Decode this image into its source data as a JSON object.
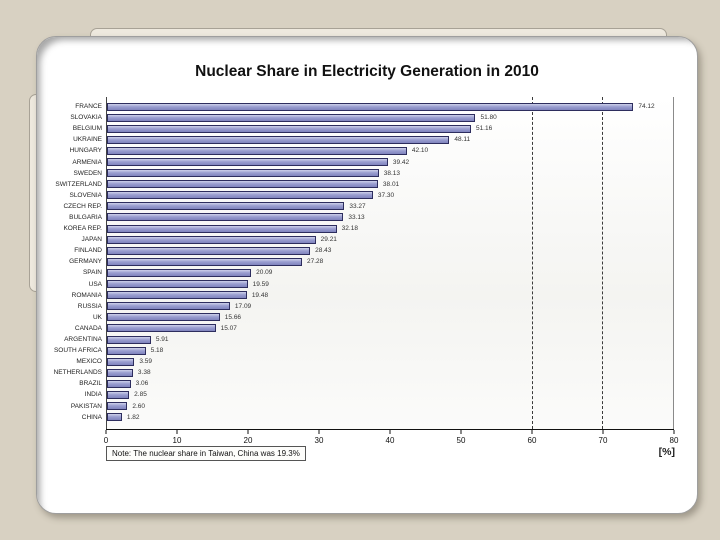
{
  "slide": {
    "title": "Nuclear Share in Electricity Generation in 2010",
    "note": "Note: The nuclear share in Taiwan, China was 19.3%",
    "unit_label": "[%]"
  },
  "chart_data": {
    "type": "bar",
    "orientation": "horizontal",
    "title": "Nuclear Share in Electricity Generation in 2010",
    "xlabel": "[%]",
    "xlim": [
      0,
      80
    ],
    "x_ticks": [
      0,
      10,
      20,
      30,
      40,
      50,
      60,
      70,
      80
    ],
    "dashed_gridlines": [
      60,
      70
    ],
    "grid": "dashed lines at 60 and 70 only",
    "legend": "none",
    "bar_color": "#9b9fd0",
    "bar_border_color": "#2d2d5e",
    "categories": [
      "FRANCE",
      "SLOVAKIA",
      "BELGIUM",
      "UKRAINE",
      "HUNGARY",
      "ARMENIA",
      "SWEDEN",
      "SWITZERLAND",
      "SLOVENIA",
      "CZECH REP.",
      "BULGARIA",
      "KOREA REP.",
      "JAPAN",
      "FINLAND",
      "GERMANY",
      "SPAIN",
      "USA",
      "ROMANIA",
      "RUSSIA",
      "UK",
      "CANADA",
      "ARGENTINA",
      "SOUTH AFRICA",
      "MEXICO",
      "NETHERLANDS",
      "BRAZIL",
      "INDIA",
      "PAKISTAN",
      "CHINA"
    ],
    "values": [
      74.12,
      51.8,
      51.16,
      48.11,
      42.1,
      39.42,
      38.13,
      38.01,
      37.3,
      33.27,
      33.13,
      32.18,
      29.21,
      28.43,
      27.28,
      20.09,
      19.59,
      19.48,
      17.09,
      15.66,
      15.07,
      5.91,
      5.18,
      3.59,
      3.38,
      3.06,
      2.85,
      2.6,
      1.82
    ]
  }
}
